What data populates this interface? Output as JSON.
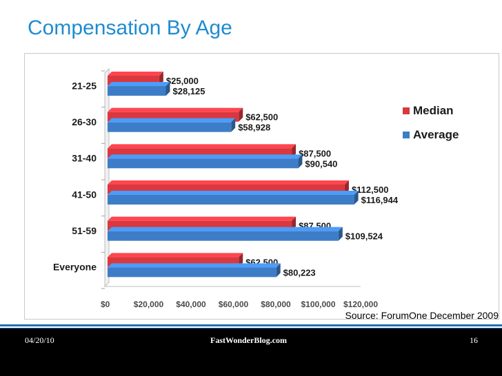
{
  "slide": {
    "title": "Compensation By Age",
    "source": "Source: ForumOne December 2009",
    "footer_date": "04/20/10",
    "footer_site": "FastWonderBlog.com",
    "page_number": "16"
  },
  "colors": {
    "title": "#1f8bd0",
    "median": "#d9383f",
    "average": "#3d7dc7",
    "footer_rule": "#1e6fb6"
  },
  "chart_data": {
    "type": "bar",
    "orientation": "horizontal",
    "categories": [
      "21-25",
      "26-30",
      "31-40",
      "41-50",
      "51-59",
      "Everyone"
    ],
    "series": [
      {
        "name": "Median",
        "values": [
          25000,
          62500,
          87500,
          112500,
          87500,
          62500
        ],
        "labels": [
          "$25,000",
          "$62,500",
          "$87,500",
          "$112,500",
          "$87,500",
          "$62,500"
        ]
      },
      {
        "name": "Average",
        "values": [
          28125,
          58928,
          90540,
          116944,
          109524,
          80223
        ],
        "labels": [
          "$28,125",
          "$58,928",
          "$90,540",
          "$116,944",
          "$109,524",
          "$80,223"
        ]
      }
    ],
    "xlim": [
      0,
      120000
    ],
    "xticks": [
      0,
      20000,
      40000,
      60000,
      80000,
      100000,
      120000
    ],
    "xtick_labels": [
      "$0",
      "$20,000",
      "$40,000",
      "$60,000",
      "$80,000",
      "$100,000",
      "$120,000"
    ],
    "legend": [
      "Median",
      "Average"
    ],
    "legend_position": "right",
    "grid": false,
    "style": "3d"
  }
}
